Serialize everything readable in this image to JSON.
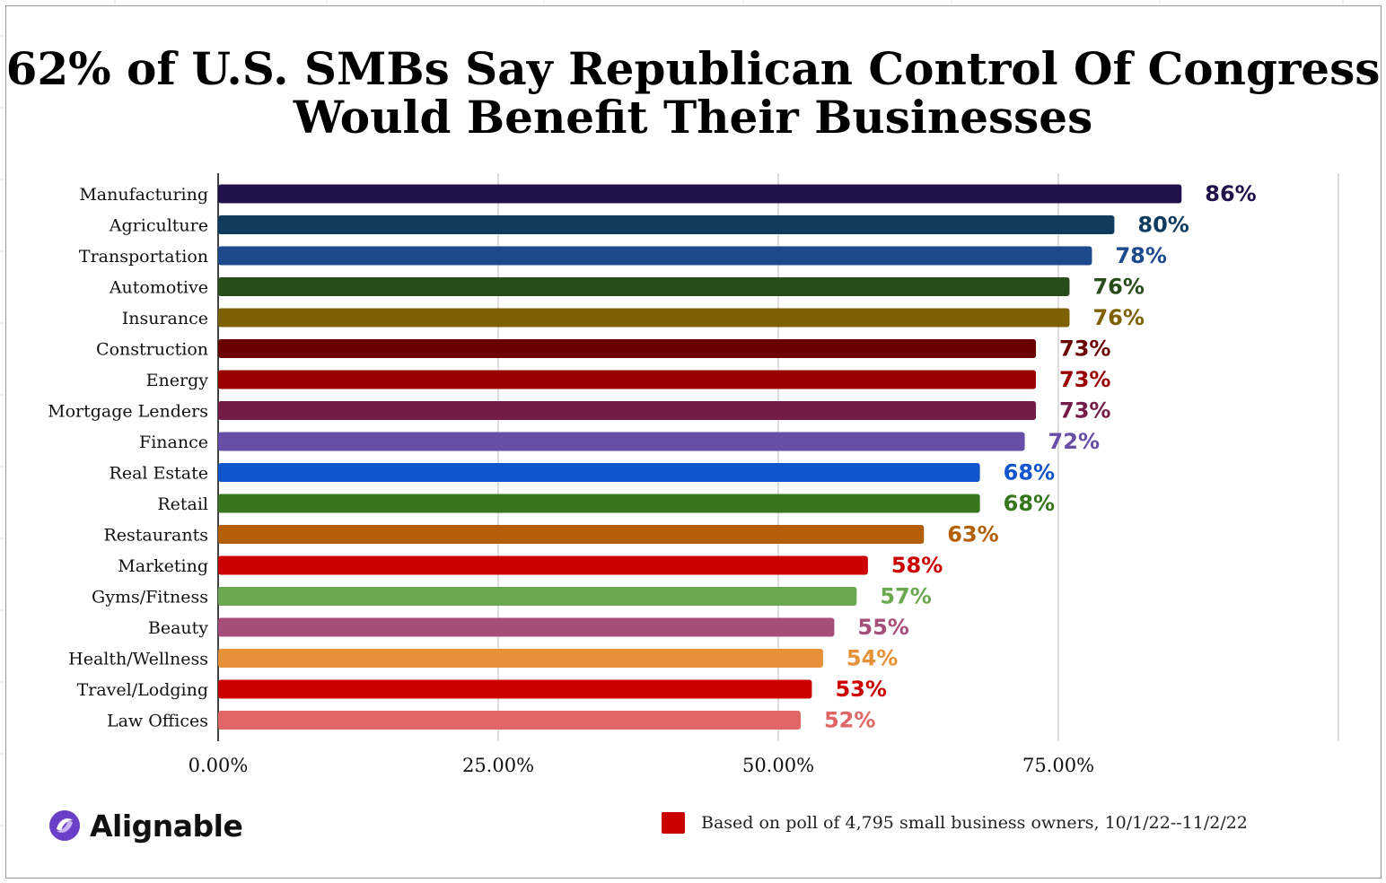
{
  "chart_data": {
    "type": "bar",
    "orientation": "horizontal",
    "title": "62% of U.S. SMBs Say Republican Control Of Congress Would Benefit Their Businesses",
    "xlabel": "",
    "ylabel": "",
    "xlim": [
      0,
      100
    ],
    "x_ticks": [
      {
        "value": 0,
        "label": "0.00%"
      },
      {
        "value": 25,
        "label": "25.00%"
      },
      {
        "value": 50,
        "label": "50.00%"
      },
      {
        "value": 75,
        "label": "75.00%"
      },
      {
        "value": 100,
        "label": ""
      }
    ],
    "grid": true,
    "categories": [
      "Manufacturing",
      "Agriculture",
      "Transportation",
      "Automotive",
      "Insurance",
      "Construction",
      "Energy",
      "Mortgage Lenders",
      "Finance",
      "Real Estate",
      "Retail",
      "Restaurants",
      "Marketing",
      "Gyms/Fitness",
      "Beauty",
      "Health/Wellness",
      "Travel/Lodging",
      "Law Offices"
    ],
    "values": [
      86,
      80,
      78,
      76,
      76,
      73,
      73,
      73,
      72,
      68,
      68,
      63,
      58,
      57,
      55,
      54,
      53,
      52
    ],
    "value_labels": [
      "86%",
      "80%",
      "78%",
      "76%",
      "76%",
      "73%",
      "73%",
      "73%",
      "72%",
      "68%",
      "68%",
      "63%",
      "58%",
      "57%",
      "55%",
      "54%",
      "53%",
      "52%"
    ],
    "colors": [
      "#21124c",
      "#0e3b5e",
      "#1d4a8c",
      "#284d1a",
      "#7d6103",
      "#6a0000",
      "#990000",
      "#741b47",
      "#674ea7",
      "#1155cc",
      "#38761d",
      "#b45f06",
      "#cc0000",
      "#6aa84f",
      "#a64d79",
      "#e69138",
      "#cc0000",
      "#e06666"
    ],
    "legend": {
      "position": "bottom-right",
      "label": "Based on poll of 4,795 small business owners, 10/1/22--11/2/22",
      "color": "#cc0000"
    }
  },
  "brand": {
    "name": "Alignable",
    "icon": "alignable-logo-icon",
    "color": "#6c3fc9"
  }
}
